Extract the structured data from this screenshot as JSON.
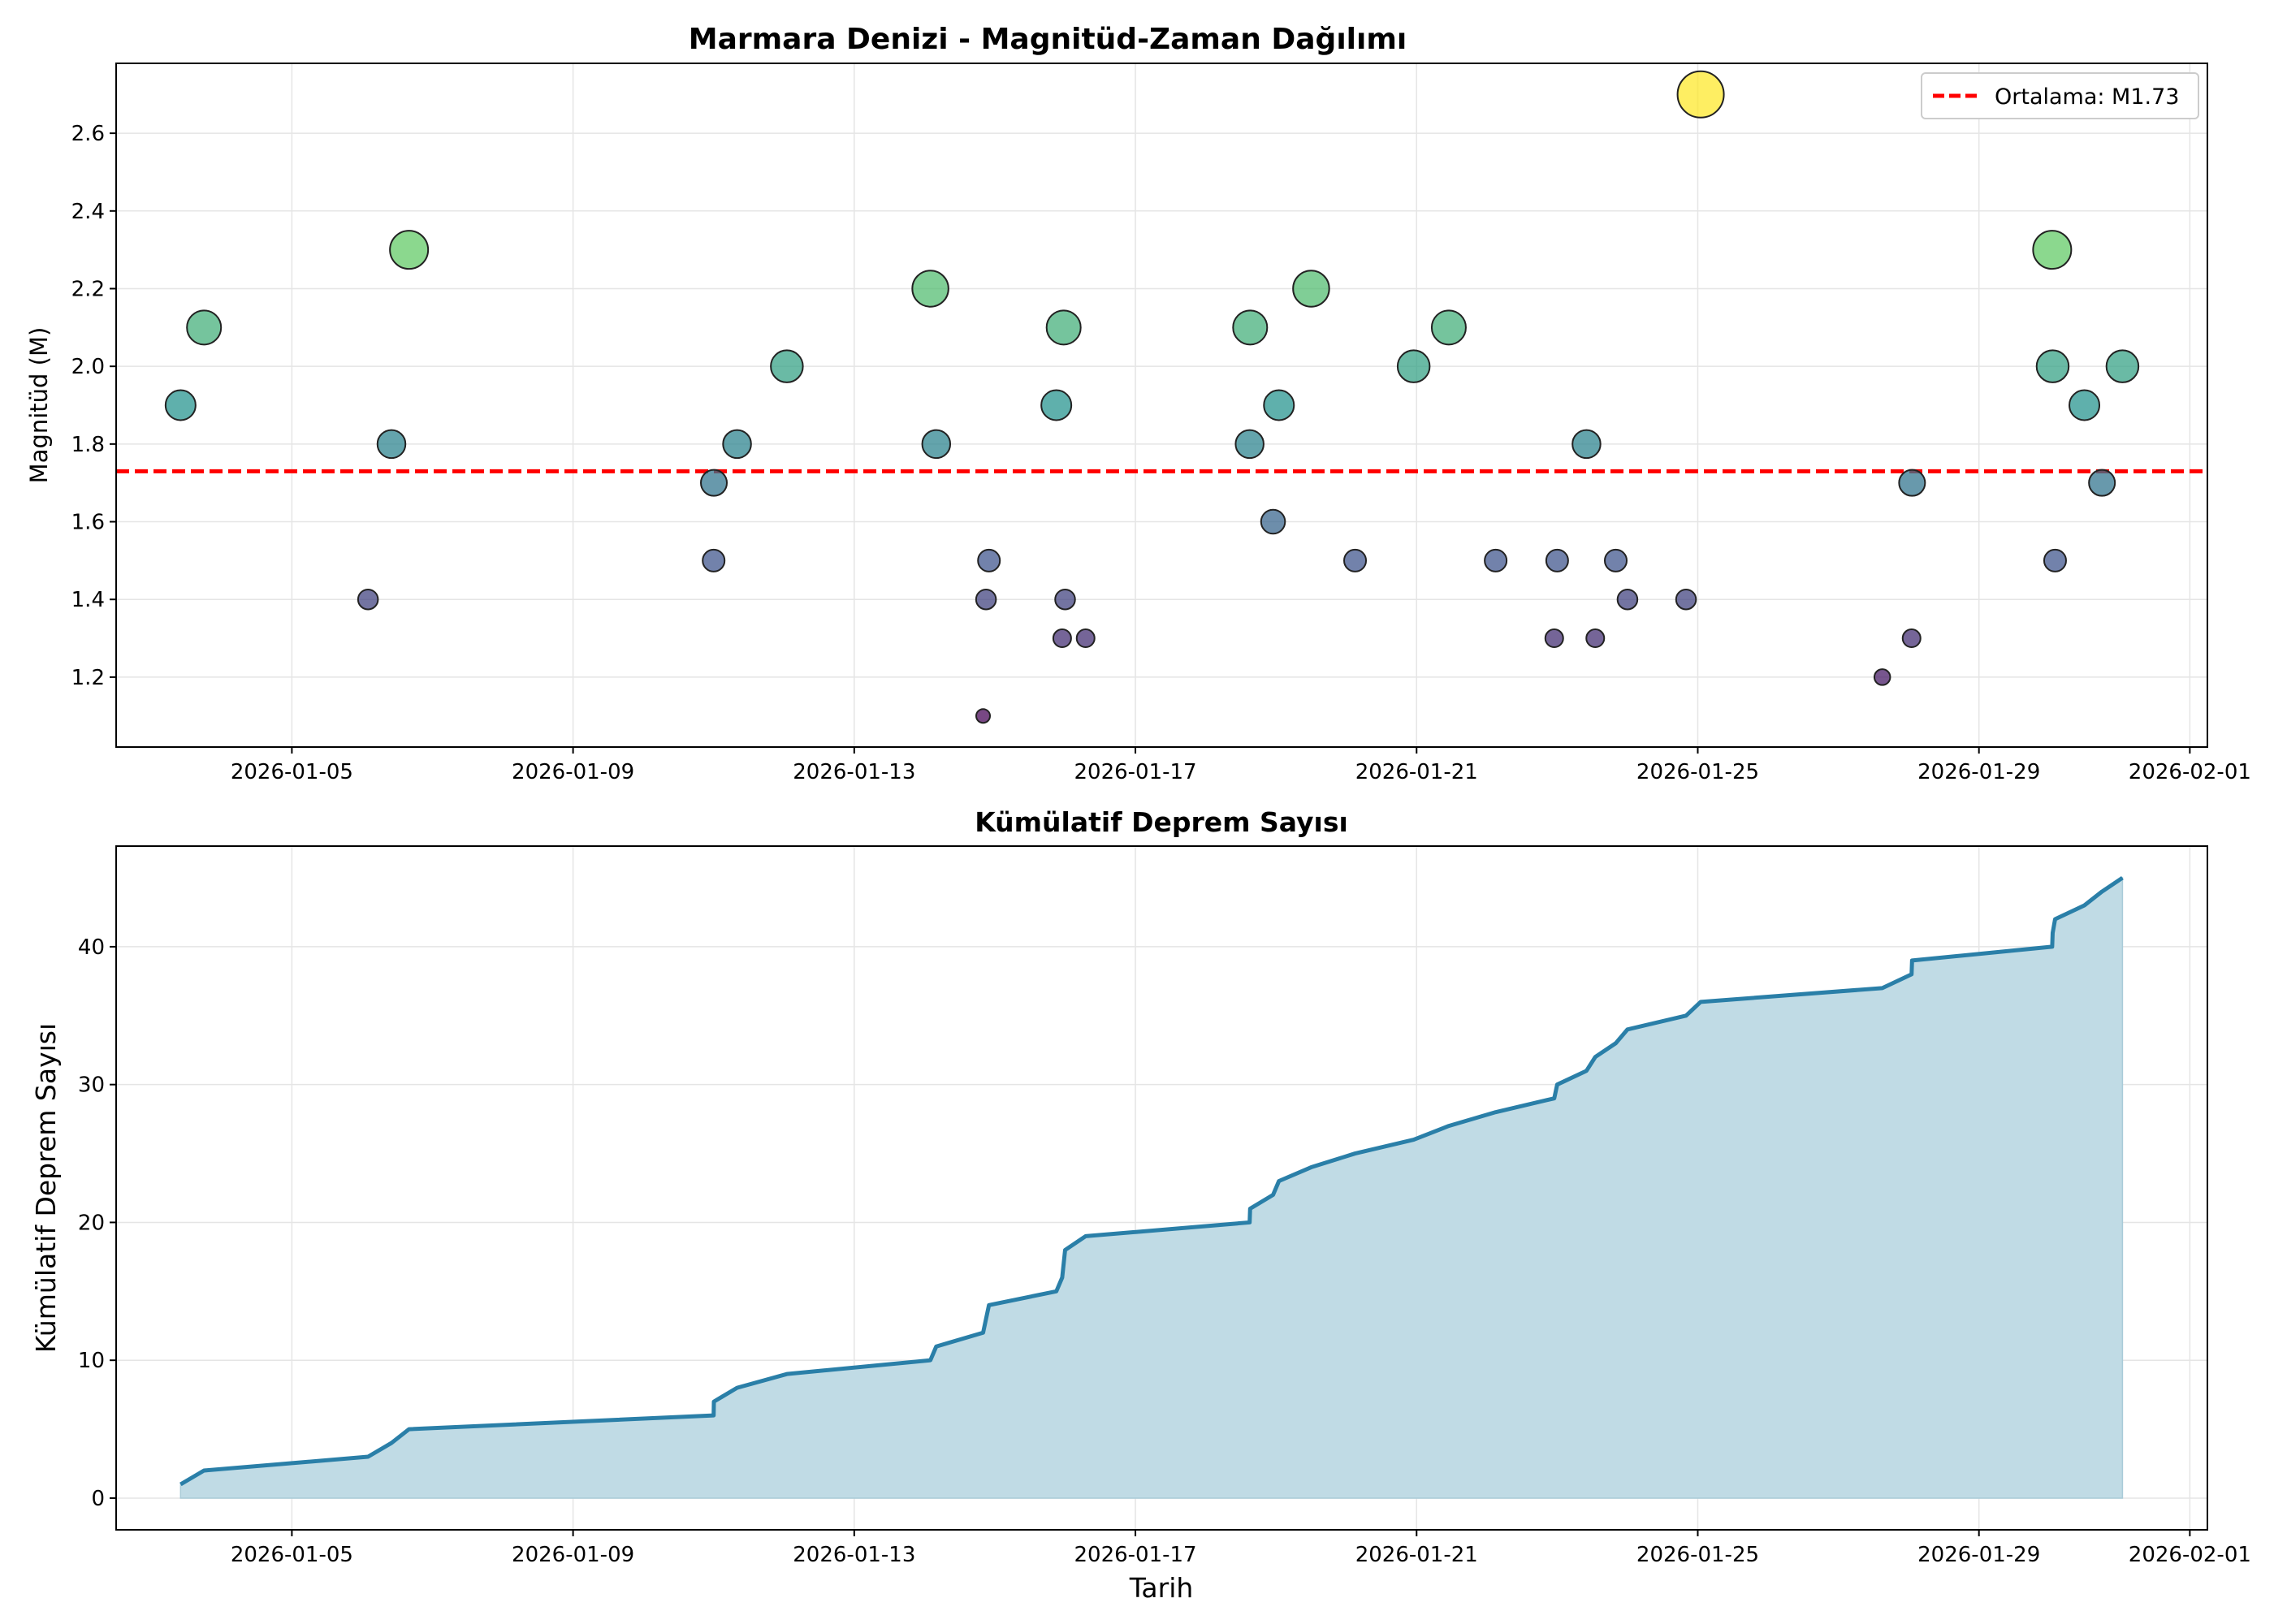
{
  "chart_data": [
    {
      "type": "scatter",
      "title": "Marmara Denizi - Magnitüd-Zaman Dağılımı",
      "xlabel": "",
      "ylabel": "Magnitüd (M)",
      "x_range": [
        "2026-01-02T12:00",
        "2026-02-01T06:00"
      ],
      "ylim": [
        1.02,
        2.78
      ],
      "yticks": [
        "1.2",
        "1.4",
        "1.6",
        "1.8",
        "2.0",
        "2.2",
        "2.4",
        "2.6"
      ],
      "xticks": [
        "2026-01-05",
        "2026-01-09",
        "2026-01-13",
        "2026-01-17",
        "2026-01-21",
        "2026-01-25",
        "2026-01-29",
        "2026-02-01"
      ],
      "grid": true,
      "colormap": "viridis",
      "mean_line": {
        "value": 1.73,
        "color": "#ff0000",
        "style": "dashed",
        "label": "Ortalama: M1.73"
      },
      "legend": {
        "position": "top-right",
        "entries": [
          "Ortalama: M1.73"
        ]
      },
      "points": [
        {
          "t": "2026-01-03T10:00",
          "m": 1.9
        },
        {
          "t": "2026-01-03T18:00",
          "m": 2.1
        },
        {
          "t": "2026-01-06T02:00",
          "m": 1.4
        },
        {
          "t": "2026-01-06T10:00",
          "m": 1.8
        },
        {
          "t": "2026-01-06T16:00",
          "m": 2.3
        },
        {
          "t": "2026-01-11T00:00",
          "m": 1.5
        },
        {
          "t": "2026-01-11T00:05",
          "m": 1.7
        },
        {
          "t": "2026-01-11T08:00",
          "m": 1.8
        },
        {
          "t": "2026-01-12T01:00",
          "m": 2.0
        },
        {
          "t": "2026-01-14T02:00",
          "m": 2.2
        },
        {
          "t": "2026-01-14T04:00",
          "m": 1.8
        },
        {
          "t": "2026-01-14T20:00",
          "m": 1.1
        },
        {
          "t": "2026-01-14T21:00",
          "m": 1.4
        },
        {
          "t": "2026-01-14T22:00",
          "m": 1.5
        },
        {
          "t": "2026-01-15T21:00",
          "m": 1.9
        },
        {
          "t": "2026-01-15T23:00",
          "m": 1.3
        },
        {
          "t": "2026-01-15T23:30",
          "m": 2.1
        },
        {
          "t": "2026-01-16T00:00",
          "m": 1.4
        },
        {
          "t": "2026-01-16T07:00",
          "m": 1.3
        },
        {
          "t": "2026-01-18T15:00",
          "m": 1.8
        },
        {
          "t": "2026-01-18T15:10",
          "m": 2.1
        },
        {
          "t": "2026-01-18T23:00",
          "m": 1.6
        },
        {
          "t": "2026-01-19T01:00",
          "m": 1.9
        },
        {
          "t": "2026-01-19T12:00",
          "m": 2.2
        },
        {
          "t": "2026-01-20T03:00",
          "m": 1.5
        },
        {
          "t": "2026-01-20T23:00",
          "m": 2.0
        },
        {
          "t": "2026-01-21T11:00",
          "m": 2.1
        },
        {
          "t": "2026-01-22T03:00",
          "m": 1.5
        },
        {
          "t": "2026-01-22T23:00",
          "m": 1.3
        },
        {
          "t": "2026-01-23T00:00",
          "m": 1.5
        },
        {
          "t": "2026-01-23T10:00",
          "m": 1.8
        },
        {
          "t": "2026-01-23T13:00",
          "m": 1.3
        },
        {
          "t": "2026-01-23T20:00",
          "m": 1.5
        },
        {
          "t": "2026-01-24T00:00",
          "m": 1.4
        },
        {
          "t": "2026-01-24T20:00",
          "m": 1.4
        },
        {
          "t": "2026-01-25T01:00",
          "m": 2.7
        },
        {
          "t": "2026-01-27T15:00",
          "m": 1.2
        },
        {
          "t": "2026-01-28T01:00",
          "m": 1.3
        },
        {
          "t": "2026-01-28T01:10",
          "m": 1.7
        },
        {
          "t": "2026-01-30T01:00",
          "m": 2.3
        },
        {
          "t": "2026-01-30T01:10",
          "m": 2.0
        },
        {
          "t": "2026-01-30T02:00",
          "m": 1.5
        },
        {
          "t": "2026-01-30T12:00",
          "m": 1.9
        },
        {
          "t": "2026-01-30T18:00",
          "m": 1.7
        },
        {
          "t": "2026-01-31T01:00",
          "m": 2.0
        }
      ]
    },
    {
      "type": "area",
      "title": "Kümülatif Deprem Sayısı",
      "xlabel": "Tarih",
      "ylabel": "Kümülatif Deprem Sayısı",
      "x_range": [
        "2026-01-02T12:00",
        "2026-02-01T06:00"
      ],
      "ylim": [
        -2.3,
        47.3
      ],
      "yticks": [
        "0",
        "10",
        "20",
        "30",
        "40"
      ],
      "xticks": [
        "2026-01-05",
        "2026-01-09",
        "2026-01-13",
        "2026-01-17",
        "2026-01-21",
        "2026-01-25",
        "2026-01-29",
        "2026-02-01"
      ],
      "grid": true,
      "line_color": "#2a7fa8",
      "fill_color": "#c0dbe5",
      "series": [
        {
          "values": [
            {
              "t": "2026-01-03T10:00",
              "n": 1
            },
            {
              "t": "2026-01-03T18:00",
              "n": 2
            },
            {
              "t": "2026-01-06T02:00",
              "n": 3
            },
            {
              "t": "2026-01-06T10:00",
              "n": 4
            },
            {
              "t": "2026-01-06T16:00",
              "n": 5
            },
            {
              "t": "2026-01-11T00:00",
              "n": 6
            },
            {
              "t": "2026-01-11T00:05",
              "n": 7
            },
            {
              "t": "2026-01-11T08:00",
              "n": 8
            },
            {
              "t": "2026-01-12T01:00",
              "n": 9
            },
            {
              "t": "2026-01-14T02:00",
              "n": 10
            },
            {
              "t": "2026-01-14T04:00",
              "n": 11
            },
            {
              "t": "2026-01-14T20:00",
              "n": 12
            },
            {
              "t": "2026-01-14T21:00",
              "n": 13
            },
            {
              "t": "2026-01-14T22:00",
              "n": 14
            },
            {
              "t": "2026-01-15T21:00",
              "n": 15
            },
            {
              "t": "2026-01-15T23:00",
              "n": 16
            },
            {
              "t": "2026-01-15T23:30",
              "n": 17
            },
            {
              "t": "2026-01-16T00:00",
              "n": 18
            },
            {
              "t": "2026-01-16T07:00",
              "n": 19
            },
            {
              "t": "2026-01-18T15:00",
              "n": 20
            },
            {
              "t": "2026-01-18T15:10",
              "n": 21
            },
            {
              "t": "2026-01-18T23:00",
              "n": 22
            },
            {
              "t": "2026-01-19T01:00",
              "n": 23
            },
            {
              "t": "2026-01-19T12:00",
              "n": 24
            },
            {
              "t": "2026-01-20T03:00",
              "n": 25
            },
            {
              "t": "2026-01-20T23:00",
              "n": 26
            },
            {
              "t": "2026-01-21T11:00",
              "n": 27
            },
            {
              "t": "2026-01-22T03:00",
              "n": 28
            },
            {
              "t": "2026-01-22T23:00",
              "n": 29
            },
            {
              "t": "2026-01-23T00:00",
              "n": 30
            },
            {
              "t": "2026-01-23T10:00",
              "n": 31
            },
            {
              "t": "2026-01-23T13:00",
              "n": 32
            },
            {
              "t": "2026-01-23T20:00",
              "n": 33
            },
            {
              "t": "2026-01-24T00:00",
              "n": 34
            },
            {
              "t": "2026-01-24T20:00",
              "n": 35
            },
            {
              "t": "2026-01-25T01:00",
              "n": 36
            },
            {
              "t": "2026-01-27T15:00",
              "n": 37
            },
            {
              "t": "2026-01-28T01:00",
              "n": 38
            },
            {
              "t": "2026-01-28T01:10",
              "n": 39
            },
            {
              "t": "2026-01-30T01:00",
              "n": 40
            },
            {
              "t": "2026-01-30T01:10",
              "n": 41
            },
            {
              "t": "2026-01-30T02:00",
              "n": 42
            },
            {
              "t": "2026-01-30T12:00",
              "n": 43
            },
            {
              "t": "2026-01-30T18:00",
              "n": 44
            },
            {
              "t": "2026-01-31T01:00",
              "n": 45
            }
          ]
        }
      ]
    }
  ]
}
